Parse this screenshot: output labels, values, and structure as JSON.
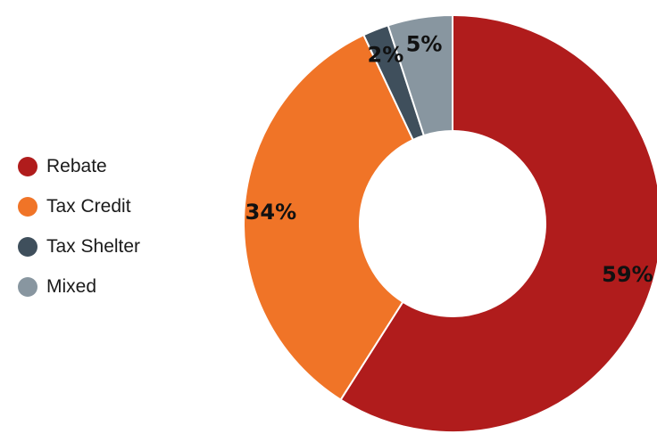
{
  "chart_data": {
    "type": "pie",
    "categories": [
      "Rebate",
      "Tax Credit",
      "Tax Shelter",
      "Mixed"
    ],
    "values": [
      59,
      34,
      2,
      5
    ],
    "labels": [
      "59%",
      "34%",
      "2%",
      "5%"
    ],
    "colors": [
      "#B01C1C",
      "#F07427",
      "#3F4F5C",
      "#8896A0"
    ],
    "title": "",
    "legend_position": "left"
  }
}
